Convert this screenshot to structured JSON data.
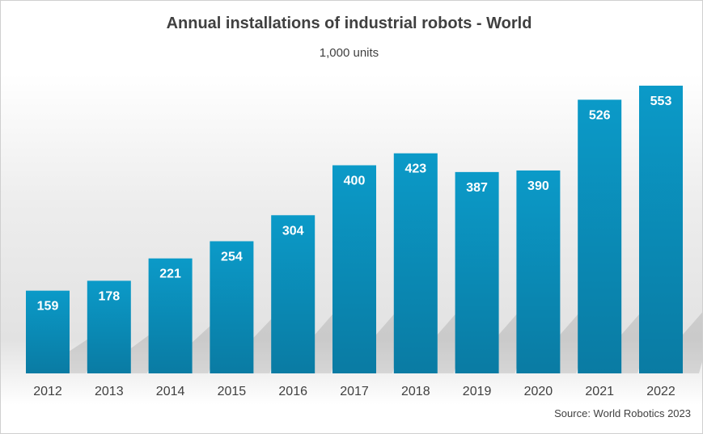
{
  "chart_data": {
    "type": "bar",
    "title": "Annual installations of industrial robots - World",
    "subtitle": "1,000 units",
    "xlabel": "",
    "ylabel": "",
    "categories": [
      "2012",
      "2013",
      "2014",
      "2015",
      "2016",
      "2017",
      "2018",
      "2019",
      "2020",
      "2021",
      "2022"
    ],
    "values": [
      159,
      178,
      221,
      254,
      304,
      400,
      423,
      387,
      390,
      526,
      553
    ],
    "data_labels": [
      "159",
      "178",
      "221",
      "254",
      "304",
      "400",
      "423",
      "387",
      "390",
      "526",
      "553"
    ],
    "ylim": [
      0,
      553
    ],
    "grid": false,
    "legend": "none",
    "bar_color": "#0b9ac8",
    "bar_color_dark": "#0a7ba3",
    "label_color": "#ffffff",
    "tick_color": "#404040",
    "source": "Source: World Robotics 2023"
  }
}
